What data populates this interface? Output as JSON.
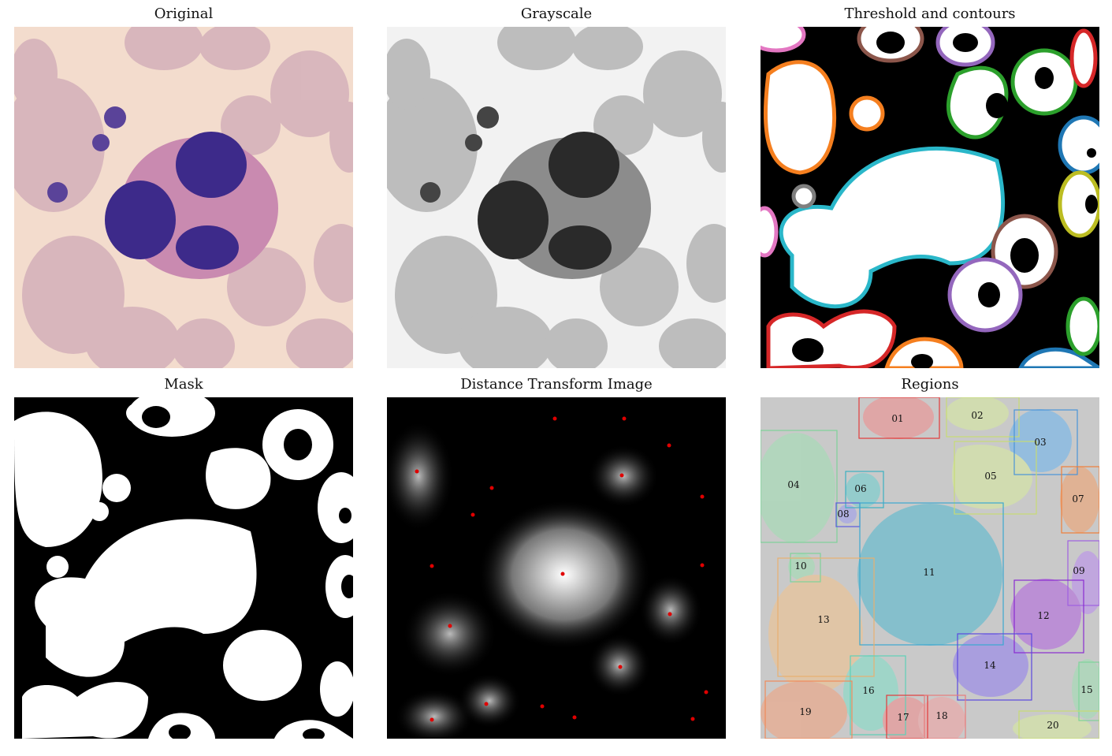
{
  "panels": [
    {
      "title": "Original"
    },
    {
      "title": "Grayscale"
    },
    {
      "title": "Threshold and contours"
    },
    {
      "title": "Mask"
    },
    {
      "title": "Distance Transform Image"
    },
    {
      "title": "Regions"
    }
  ],
  "regions": {
    "labels": [
      "01",
      "02",
      "03",
      "04",
      "05",
      "06",
      "07",
      "08",
      "09",
      "10",
      "11",
      "12",
      "13",
      "14",
      "15",
      "16",
      "17",
      "18",
      "19",
      "20"
    ]
  },
  "colors": {
    "original_bg": "#f3dccd",
    "rbc": "#d4b0ba",
    "nucleus": "#3d2a8a",
    "cytoplasm": "#c98ab0",
    "contour_cyan": "#2ab7c9",
    "contour_orange": "#f57f1f",
    "contour_green": "#2ca02c",
    "contour_purple": "#9467bd",
    "contour_brown": "#8c564b",
    "contour_red": "#d62728",
    "contour_blue": "#1f77b4",
    "contour_olive": "#bcbd22",
    "contour_pink": "#e377c2"
  }
}
